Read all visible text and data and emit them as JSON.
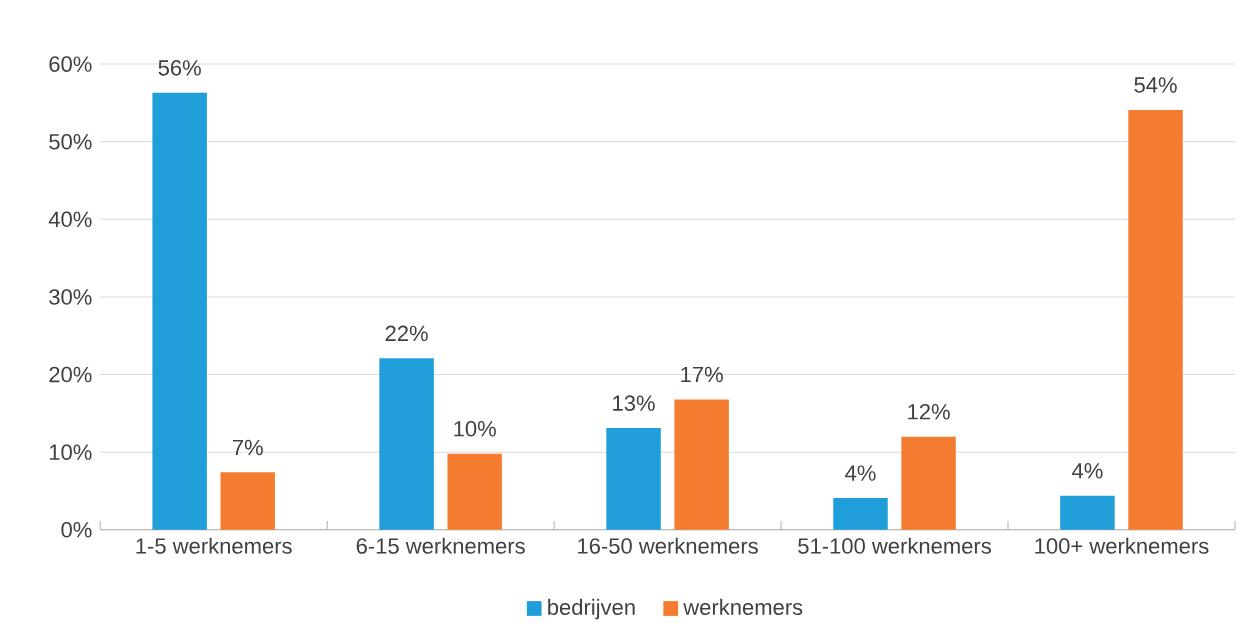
{
  "chart_data": {
    "type": "bar",
    "categories": [
      "1-5 werknemers",
      "6-15 werknemers",
      "16-50 werknemers",
      "51-100 werknemers",
      "100+ werknemers"
    ],
    "series": [
      {
        "name": "bedrijven",
        "color": "#1f9ed9",
        "values": [
          56.3,
          22.1,
          13.1,
          4.1,
          4.4
        ],
        "value_labels": [
          "56%",
          "22%",
          "13%",
          "4%",
          "4%"
        ]
      },
      {
        "name": "werknemers",
        "color": "#f47c30",
        "values": [
          7.4,
          9.8,
          16.8,
          12.0,
          54.1
        ],
        "value_labels": [
          "7%",
          "10%",
          "17%",
          "12%",
          "54%"
        ]
      }
    ],
    "ylim": [
      0,
      60
    ],
    "yticks": [
      {
        "value": 0,
        "label": "0%"
      },
      {
        "value": 10,
        "label": "10%"
      },
      {
        "value": 20,
        "label": "20%"
      },
      {
        "value": 30,
        "label": "30%"
      },
      {
        "value": 40,
        "label": "40%"
      },
      {
        "value": 50,
        "label": "50%"
      },
      {
        "value": 60,
        "label": "60%"
      }
    ],
    "grid": "y",
    "legend": "bottom"
  }
}
